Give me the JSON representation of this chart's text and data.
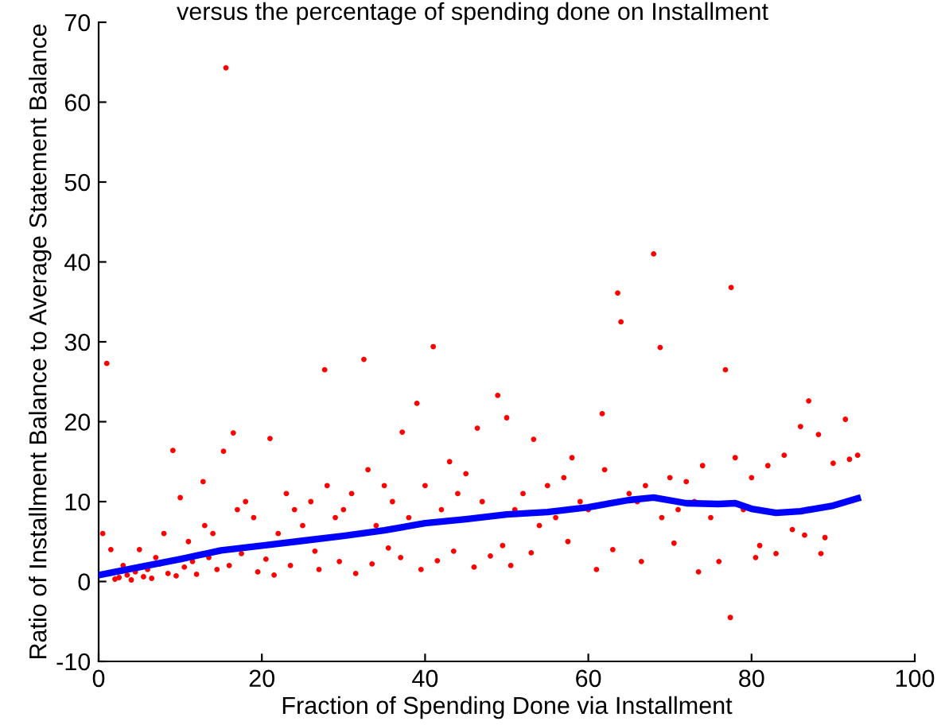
{
  "chart_data": {
    "type": "scatter",
    "title": "versus the percentage of spending done on Installment",
    "xlabel": "Fraction of Spending Done via Installment",
    "ylabel": "Ratio of Installment Balance to Average Statement Balance",
    "xlim": [
      0,
      100
    ],
    "ylim": [
      -10,
      70
    ],
    "xticks": [
      0,
      20,
      40,
      60,
      80,
      100
    ],
    "yticks": [
      -10,
      0,
      10,
      20,
      30,
      40,
      50,
      60,
      70
    ],
    "grid": false,
    "legend": false,
    "series": [
      {
        "color": "#ff0000",
        "marker": "circle",
        "x": [
          1,
          15.6,
          77.5,
          68,
          63.6,
          64,
          68.8,
          76.8,
          77.4,
          41,
          32.5,
          27.7,
          48.9,
          50,
          61.7,
          87,
          91.5,
          86,
          88.2,
          39,
          16.5,
          15.3,
          9.1,
          21,
          37.2,
          46.4,
          53.3,
          12.8,
          10,
          33,
          35,
          43,
          45,
          58,
          62,
          70,
          72,
          74,
          78,
          82,
          84,
          90,
          92,
          93,
          3,
          5,
          7,
          8,
          11,
          13,
          14,
          17,
          18,
          19,
          22,
          23,
          24,
          25,
          26,
          28,
          29,
          30,
          31,
          34,
          36,
          38,
          40,
          42,
          44,
          47,
          51,
          52,
          54,
          55,
          56,
          57,
          59,
          60,
          65,
          66,
          67,
          69,
          71,
          73,
          75,
          79,
          80,
          81,
          83,
          85,
          89,
          0.5,
          1.5,
          2,
          2.5,
          3.5,
          4,
          4.5,
          5.5,
          6,
          6.5,
          7.5,
          8.5,
          9.5,
          10.5,
          11.5,
          12,
          13.5,
          14.5,
          16,
          17.5,
          19.5,
          20.5,
          21.5,
          23.5,
          26.5,
          27,
          29.5,
          31.5,
          33.5,
          35.5,
          37,
          39.5,
          41.5,
          43.5,
          46,
          48,
          49.5,
          50.5,
          53,
          57.5,
          61,
          63,
          66.5,
          70.5,
          73.5,
          76,
          80.5,
          86.5,
          88.5
        ],
        "values": [
          27.3,
          64.3,
          36.8,
          41,
          36.1,
          32.5,
          29.3,
          26.5,
          -4.5,
          29.4,
          27.8,
          26.5,
          23.3,
          20.5,
          21,
          22.6,
          20.3,
          19.4,
          18.4,
          22.3,
          18.6,
          16.3,
          16.4,
          17.9,
          18.7,
          19.2,
          17.8,
          12.5,
          10.5,
          14,
          12,
          15,
          13.5,
          15.5,
          14,
          13,
          12.5,
          14.5,
          15.5,
          14.5,
          15.8,
          14.8,
          15.3,
          15.8,
          2,
          4,
          3,
          6,
          5,
          7,
          6,
          9,
          10,
          8,
          6,
          11,
          9,
          7,
          10,
          12,
          8,
          9,
          11,
          7,
          10,
          8,
          12,
          9,
          11,
          10,
          9,
          11,
          7,
          12,
          8,
          13,
          10,
          9,
          11,
          10,
          12,
          8,
          9,
          10,
          8,
          9,
          13,
          4.5,
          3.5,
          6.5,
          5.5,
          6,
          4,
          0.3,
          0.5,
          0.8,
          0.2,
          1.2,
          0.6,
          1.5,
          0.4,
          2.2,
          1,
          0.7,
          1.8,
          2.5,
          0.9,
          3,
          1.5,
          2,
          3.5,
          1.2,
          2.8,
          0.8,
          2,
          3.8,
          1.5,
          2.5,
          1,
          2.2,
          4.2,
          3,
          1.5,
          2.6,
          3.8,
          1.8,
          3.2,
          4.5,
          2,
          3.6,
          5,
          1.5,
          4,
          2.5,
          4.8,
          1.2,
          2.5,
          3,
          5.8,
          3.5
        ]
      },
      {
        "type": "line",
        "color": "#0000ff",
        "line_style": "solid",
        "marker": "none",
        "x": [
          0,
          5,
          10,
          15,
          20,
          25,
          30,
          35,
          40,
          45,
          50,
          55,
          60,
          65,
          68,
          72,
          76,
          78,
          80,
          83,
          86,
          90,
          93
        ],
        "values": [
          0.8,
          1.8,
          2.8,
          3.9,
          4.5,
          5.1,
          5.7,
          6.4,
          7.3,
          7.8,
          8.4,
          8.7,
          9.3,
          10.2,
          10.5,
          9.8,
          9.7,
          9.8,
          9.1,
          8.6,
          8.8,
          9.5,
          10.4
        ]
      }
    ]
  }
}
